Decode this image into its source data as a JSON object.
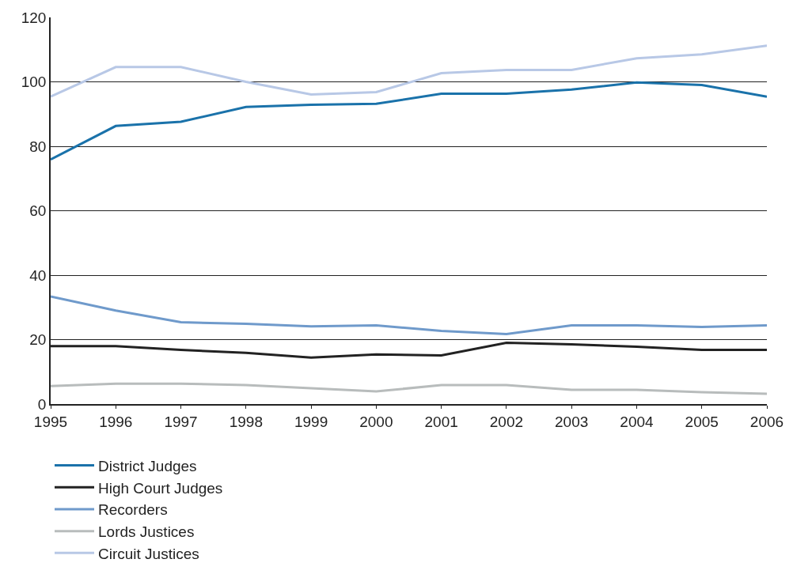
{
  "chart_data": {
    "type": "line",
    "x": [
      1995,
      1996,
      1997,
      1998,
      1999,
      2000,
      2001,
      2002,
      2003,
      2004,
      2005,
      2006
    ],
    "series": [
      {
        "name": "District Judges",
        "color": "#1a72aa",
        "values": [
          75.9,
          86.3,
          87.6,
          92.2,
          92.9,
          93.2,
          96.3,
          96.3,
          97.6,
          99.8,
          99.0,
          95.4
        ]
      },
      {
        "name": "High Court Judges",
        "color": "#222222",
        "values": [
          18.0,
          18.0,
          16.8,
          15.9,
          14.4,
          15.4,
          15.1,
          19.0,
          18.5,
          17.8,
          16.8,
          16.8
        ]
      },
      {
        "name": "Recorders",
        "color": "#6f9acb",
        "values": [
          33.4,
          29.0,
          25.4,
          24.9,
          24.1,
          24.4,
          22.7,
          21.7,
          24.4,
          24.4,
          23.9,
          24.4
        ]
      },
      {
        "name": "Lords Justices",
        "color": "#b8bcbc",
        "values": [
          5.6,
          6.3,
          6.3,
          5.9,
          4.9,
          3.9,
          5.9,
          5.9,
          4.4,
          4.4,
          3.7,
          3.2
        ]
      },
      {
        "name": "Circuit Justices",
        "color": "#b8c8e6",
        "values": [
          95.4,
          104.6,
          104.6,
          100.0,
          96.1,
          96.8,
          102.7,
          103.7,
          103.7,
          107.3,
          108.5,
          111.2
        ]
      }
    ],
    "xlim": [
      1995,
      2006
    ],
    "xticks": [
      1995,
      1996,
      1997,
      1998,
      1999,
      2000,
      2001,
      2002,
      2003,
      2004,
      2005,
      2006
    ],
    "ylim": [
      0,
      120
    ],
    "yticks": [
      0,
      20,
      40,
      60,
      80,
      100,
      120
    ],
    "grid": "y",
    "legend": "bottom left",
    "marker": "none",
    "line_style": "solid"
  }
}
